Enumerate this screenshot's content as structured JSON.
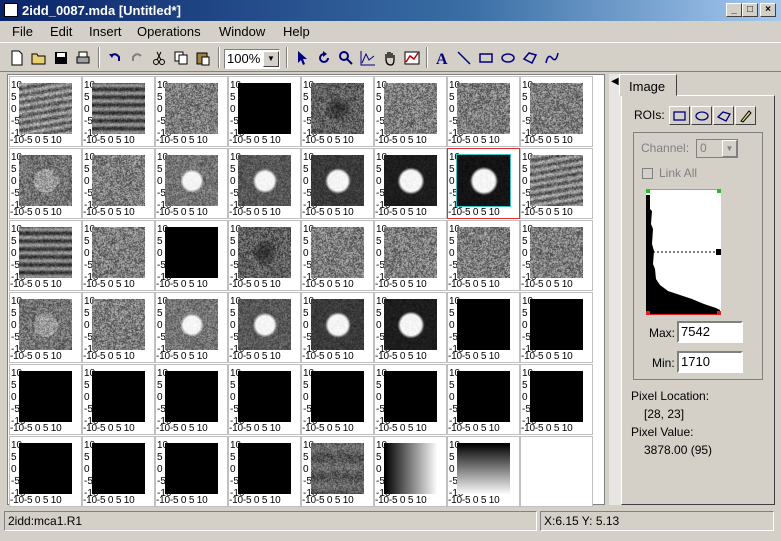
{
  "window": {
    "title": "2idd_0087.mda [Untitled*]",
    "min": "_",
    "max": "□",
    "close": "×"
  },
  "menu": [
    "File",
    "Edit",
    "Insert",
    "Operations",
    "Window",
    "Help"
  ],
  "toolbar": {
    "zoom": "100%",
    "icons": [
      "new-icon",
      "open-icon",
      "save-icon",
      "print-icon",
      "undo-icon",
      "redo-icon",
      "cut-icon",
      "copy-icon",
      "paste-icon",
      "pointer-icon",
      "rotate-icon",
      "zoom-icon",
      "line-plot-icon",
      "pan-hand-icon",
      "color-table-icon",
      "text-icon",
      "line-icon",
      "rectangle-icon",
      "ellipse-icon",
      "polygon-icon",
      "freehand-icon"
    ]
  },
  "grid": {
    "y_ticks": [
      "10",
      "5",
      "0",
      "-5",
      "-10"
    ],
    "x_ticks": "-10-5  0  5 10",
    "cells": [
      "stripe",
      "stripe2",
      "noise",
      "black",
      "darkblob",
      "noise",
      "noise",
      "noise",
      "noisespot",
      "noise",
      "spot1",
      "spot2",
      "spot3",
      "spot4",
      "spot5sel",
      "stripe",
      "stripe2",
      "noise",
      "black",
      "darkblob",
      "noise",
      "noise",
      "noise",
      "noise",
      "noisespot",
      "noise",
      "spot1",
      "spot2",
      "spot3",
      "spot4",
      "black",
      "black",
      "black",
      "black",
      "black",
      "black",
      "black",
      "black",
      "black",
      "black",
      "black",
      "black",
      "black",
      "black",
      "graynoise",
      "hgrad",
      "vgrad",
      "empty"
    ]
  },
  "panel": {
    "tab": "Image",
    "rois_label": "ROIs:",
    "channel_label": "Channel:",
    "channel_value": "0",
    "link_all": "Link All",
    "max_label": "Max:",
    "max_value": "7542",
    "min_label": "Min:",
    "min_value": "1710",
    "pixel_location_label": "Pixel Location:",
    "pixel_location_value": "[28, 23]",
    "pixel_value_label": "Pixel Value:",
    "pixel_value_value": "3878.00 (95)"
  },
  "status": {
    "left": "2idd:mca1.R1",
    "right": "X:6.15 Y: 5.13"
  }
}
